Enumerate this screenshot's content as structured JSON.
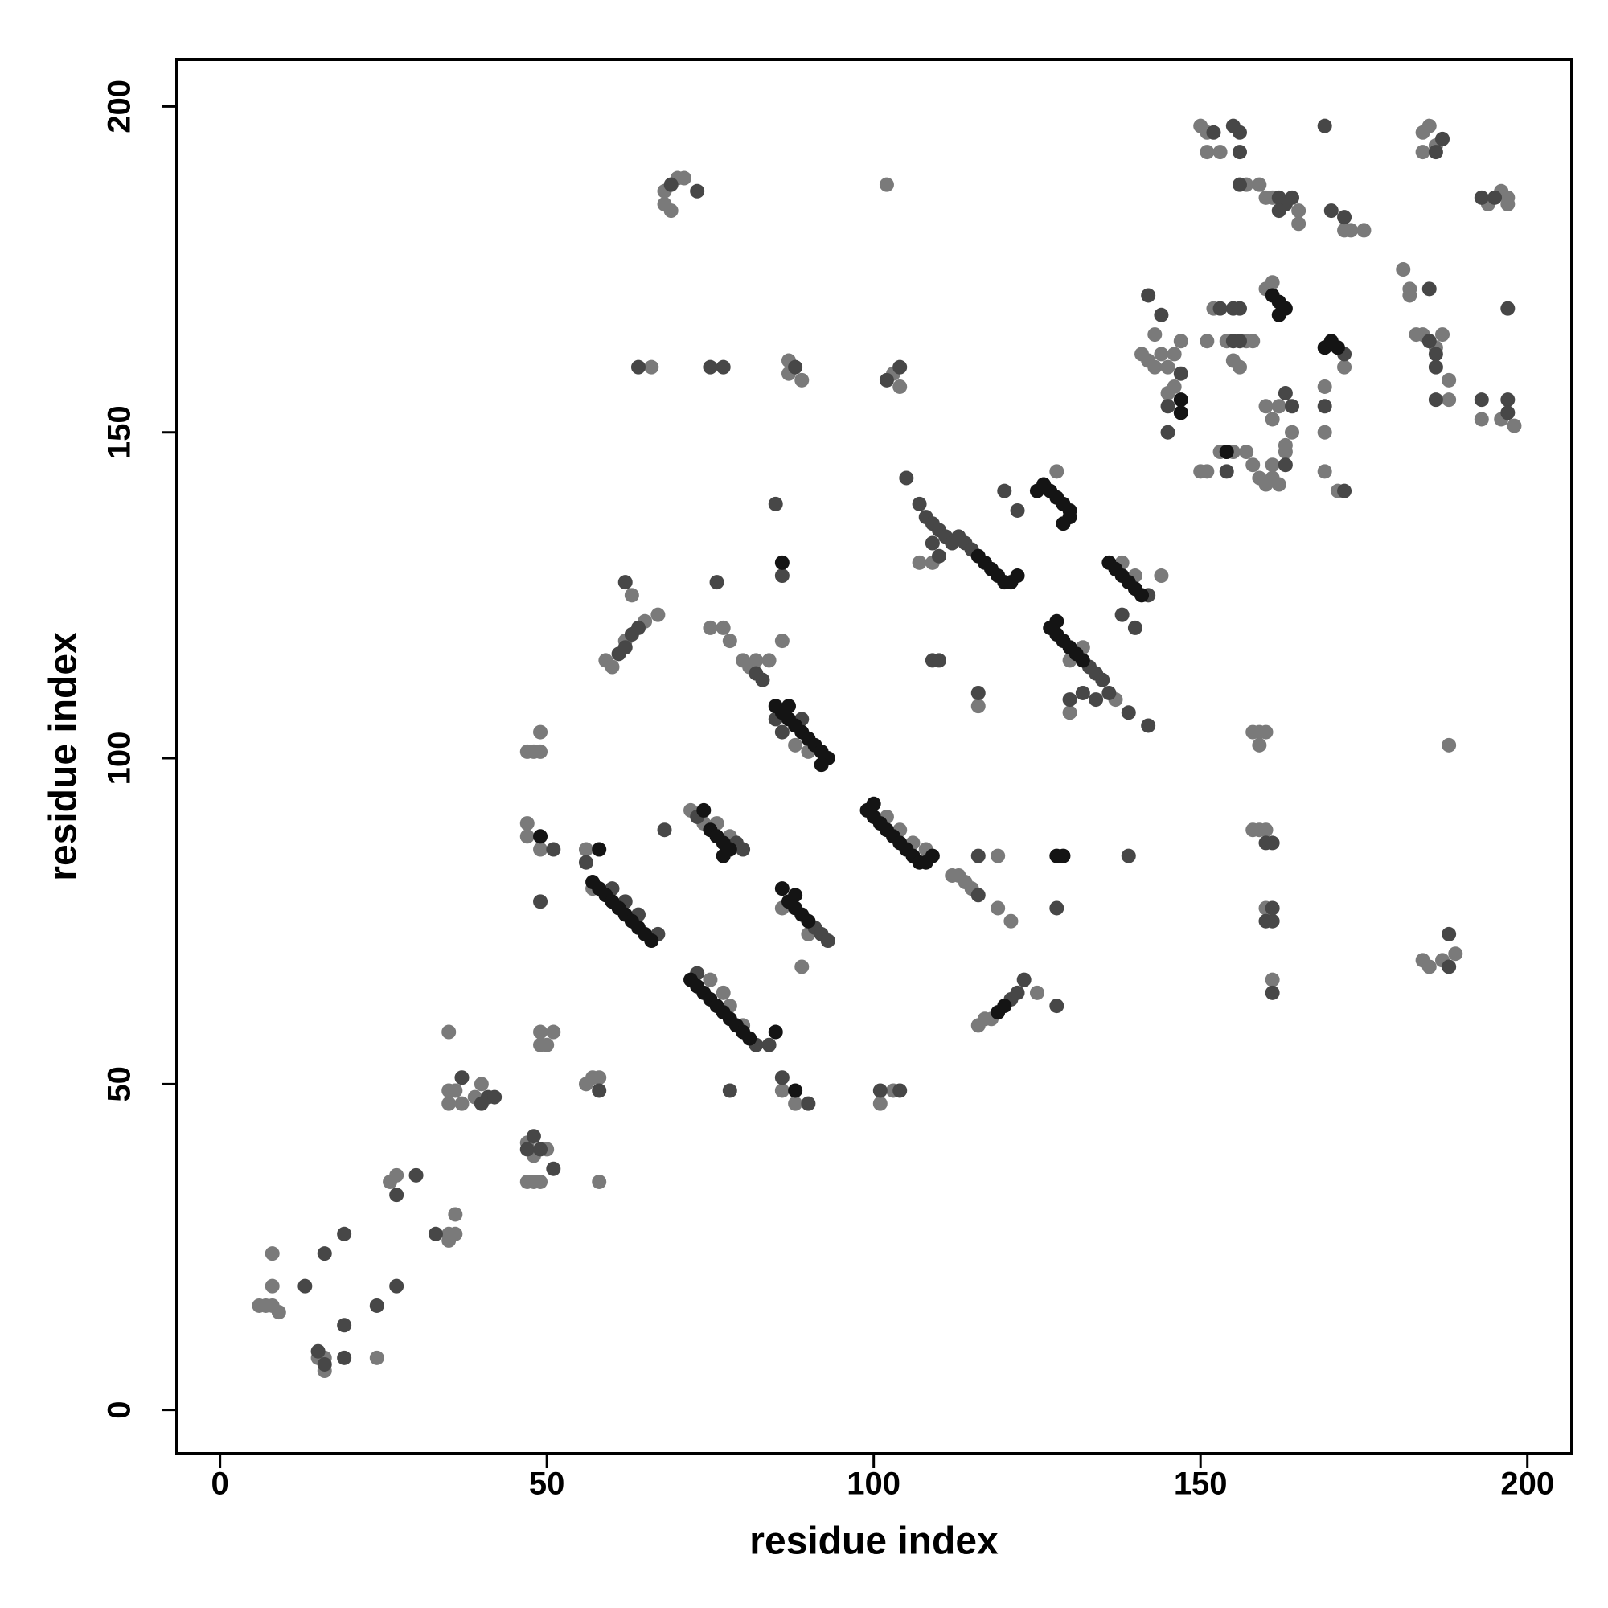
{
  "chart_data": {
    "type": "scatter",
    "x_label": "residue index",
    "y_label": "residue index",
    "xlim": [
      -6.6,
      206.8
    ],
    "ylim": [
      -6.7,
      207.2
    ],
    "xticks": [
      0,
      50,
      100,
      150,
      200
    ],
    "yticks": [
      0,
      50,
      100,
      150,
      200
    ],
    "grid": false,
    "series": [
      {
        "color": "#7a7a7a",
        "x": [
          6,
          7,
          8,
          9,
          8,
          8,
          15,
          16,
          16,
          24,
          26,
          27,
          35,
          35,
          36,
          36,
          35,
          35,
          35,
          36,
          37,
          39,
          40,
          47,
          48,
          50,
          47,
          49,
          48,
          49,
          50,
          51,
          49,
          47,
          48,
          49,
          49,
          47,
          47,
          49,
          56,
          57,
          58,
          58,
          56,
          57,
          59,
          60,
          62,
          65,
          63,
          67,
          66,
          68,
          70,
          71,
          68,
          69,
          72,
          74,
          76,
          78,
          75,
          77,
          78,
          80,
          77,
          75,
          78,
          80,
          81,
          82,
          84,
          88,
          90,
          86,
          86,
          90,
          89,
          86,
          88,
          87,
          89,
          87,
          102,
          104,
          106,
          108,
          101,
          103,
          102,
          103,
          104,
          107,
          109,
          112,
          113,
          114,
          115,
          119,
          116,
          119,
          121,
          116,
          117,
          118,
          125,
          128,
          130,
          132,
          130,
          137,
          138,
          140,
          144,
          141,
          142,
          143,
          144,
          143,
          145,
          145,
          146,
          147,
          146,
          150,
          151,
          151,
          153,
          157,
          159,
          150,
          151,
          153,
          155,
          157,
          151,
          152,
          154,
          157,
          155,
          156,
          158,
          158,
          159,
          160,
          159,
          158,
          159,
          160,
          160,
          161,
          158,
          159,
          160,
          161,
          162,
          161,
          163,
          160,
          161,
          165,
          165,
          160,
          161,
          160,
          161,
          162,
          164,
          163,
          169,
          169,
          169,
          171,
          172,
          172,
          173,
          175,
          181,
          182,
          182,
          183,
          184,
          186,
          187,
          188,
          188,
          184,
          185,
          186,
          184,
          188,
          184,
          185,
          187,
          189,
          194,
          196,
          197,
          197,
          193,
          198,
          196
        ],
        "values": [
          16,
          16,
          16,
          15,
          19,
          24,
          8,
          6,
          8,
          8,
          35,
          36,
          27,
          26,
          27,
          30,
          58,
          49,
          47,
          49,
          47,
          48,
          50,
          41,
          39,
          40,
          35,
          35,
          35,
          58,
          56,
          58,
          56,
          101,
          101,
          101,
          104,
          90,
          88,
          86,
          50,
          51,
          51,
          35,
          86,
          80,
          115,
          114,
          118,
          121,
          125,
          122,
          160,
          187,
          189,
          189,
          185,
          184,
          92,
          90,
          90,
          88,
          66,
          64,
          62,
          59,
          120,
          120,
          118,
          115,
          114,
          115,
          115,
          102,
          101,
          118,
          77,
          73,
          68,
          49,
          47,
          161,
          158,
          159,
          91,
          89,
          87,
          86,
          47,
          49,
          188,
          159,
          157,
          130,
          130,
          82,
          82,
          81,
          80,
          85,
          108,
          77,
          75,
          59,
          60,
          60,
          64,
          144,
          115,
          117,
          107,
          109,
          130,
          128,
          128,
          162,
          161,
          160,
          162,
          165,
          160,
          156,
          157,
          164,
          162,
          197,
          196,
          193,
          193,
          188,
          188,
          144,
          144,
          147,
          147,
          147,
          164,
          169,
          164,
          164,
          161,
          160,
          164,
          104,
          104,
          104,
          102,
          89,
          89,
          89,
          77,
          66,
          145,
          143,
          142,
          143,
          142,
          145,
          147,
          186,
          186,
          184,
          182,
          172,
          173,
          154,
          152,
          154,
          150,
          148,
          157,
          150,
          144,
          141,
          160,
          181,
          181,
          181,
          175,
          172,
          171,
          165,
          165,
          163,
          165,
          158,
          155,
          196,
          197,
          194,
          193,
          102,
          69,
          68,
          69,
          70,
          185,
          187,
          186,
          185,
          152,
          151,
          152
        ]
      },
      {
        "color": "#474747",
        "x": [
          13,
          15,
          16,
          16,
          19,
          19,
          19,
          24,
          27,
          27,
          30,
          33,
          37,
          40,
          41,
          42,
          47,
          48,
          49,
          51,
          51,
          49,
          58,
          56,
          60,
          62,
          64,
          67,
          61,
          62,
          63,
          64,
          62,
          64,
          69,
          73,
          68,
          73,
          79,
          80,
          82,
          84,
          73,
          78,
          75,
          77,
          76,
          82,
          83,
          85,
          86,
          89,
          85,
          86,
          86,
          90,
          88,
          91,
          92,
          93,
          101,
          104,
          102,
          104,
          105,
          107,
          108,
          109,
          110,
          111,
          112,
          113,
          114,
          115,
          109,
          110,
          109,
          110,
          116,
          116,
          116,
          121,
          122,
          123,
          120,
          122,
          133,
          134,
          135,
          130,
          132,
          134,
          136,
          139,
          142,
          142,
          140,
          138,
          139,
          128,
          128,
          142,
          144,
          145,
          145,
          147,
          152,
          156,
          156,
          155,
          156,
          154,
          155,
          156,
          155,
          156,
          153,
          160,
          161,
          160,
          161,
          161,
          161,
          162,
          163,
          164,
          162,
          163,
          163,
          164,
          169,
          172,
          169,
          172,
          170,
          172,
          185,
          186,
          186,
          185,
          186,
          186,
          187,
          188,
          188,
          193,
          195,
          193,
          197,
          197,
          197
        ],
        "values": [
          19,
          9,
          7,
          24,
          27,
          13,
          8,
          16,
          19,
          33,
          36,
          27,
          51,
          47,
          48,
          48,
          40,
          42,
          40,
          37,
          86,
          78,
          49,
          84,
          80,
          78,
          76,
          73,
          116,
          117,
          119,
          120,
          127,
          160,
          188,
          187,
          89,
          91,
          87,
          86,
          56,
          56,
          67,
          49,
          160,
          160,
          127,
          113,
          112,
          106,
          104,
          106,
          139,
          128,
          51,
          47,
          160,
          74,
          73,
          72,
          49,
          49,
          158,
          160,
          143,
          139,
          137,
          136,
          135,
          134,
          133,
          134,
          133,
          132,
          133,
          131,
          115,
          115,
          85,
          110,
          79,
          63,
          64,
          66,
          141,
          138,
          114,
          113,
          112,
          109,
          110,
          109,
          110,
          107,
          105,
          125,
          120,
          122,
          85,
          77,
          62,
          171,
          168,
          154,
          150,
          159,
          196,
          196,
          193,
          197,
          188,
          144,
          164,
          164,
          169,
          169,
          169,
          87,
          87,
          75,
          75,
          77,
          64,
          186,
          185,
          186,
          184,
          145,
          156,
          154,
          197,
          162,
          154,
          141,
          184,
          183,
          172,
          162,
          160,
          164,
          155,
          193,
          195,
          73,
          68,
          186,
          186,
          155,
          155,
          153,
          169
        ]
      },
      {
        "color": "#141414",
        "x": [
          57,
          58,
          59,
          60,
          61,
          62,
          63,
          64,
          65,
          66,
          72,
          73,
          74,
          75,
          76,
          77,
          78,
          79,
          80,
          81,
          74,
          75,
          76,
          77,
          78,
          77,
          85,
          86,
          87,
          88,
          89,
          90,
          91,
          92,
          93,
          92,
          87,
          86,
          87,
          88,
          89,
          90,
          88,
          99,
          100,
          101,
          102,
          103,
          104,
          105,
          106,
          107,
          108,
          109,
          100,
          116,
          117,
          118,
          119,
          120,
          121,
          122,
          125,
          126,
          127,
          128,
          129,
          130,
          130,
          129,
          127,
          128,
          129,
          130,
          131,
          132,
          128,
          136,
          137,
          138,
          139,
          140,
          141,
          161,
          162,
          163,
          162,
          169,
          170,
          171,
          88,
          49,
          58,
          85,
          86,
          128,
          129,
          147,
          147,
          154,
          119,
          120
        ],
        "values": [
          81,
          80,
          79,
          78,
          77,
          76,
          75,
          74,
          73,
          72,
          66,
          65,
          64,
          63,
          62,
          61,
          60,
          59,
          58,
          57,
          92,
          89,
          88,
          87,
          86,
          85,
          108,
          107,
          106,
          105,
          104,
          103,
          102,
          101,
          100,
          99,
          108,
          80,
          78,
          77,
          76,
          75,
          79,
          92,
          91,
          90,
          89,
          88,
          87,
          86,
          85,
          84,
          84,
          85,
          93,
          131,
          130,
          129,
          128,
          127,
          127,
          128,
          141,
          142,
          141,
          140,
          139,
          138,
          137,
          136,
          120,
          119,
          118,
          117,
          116,
          115,
          121,
          130,
          129,
          128,
          127,
          126,
          125,
          171,
          170,
          169,
          168,
          163,
          164,
          163,
          49,
          88,
          86,
          58,
          130,
          85,
          85,
          155,
          153,
          147,
          61,
          62
        ]
      }
    ]
  }
}
